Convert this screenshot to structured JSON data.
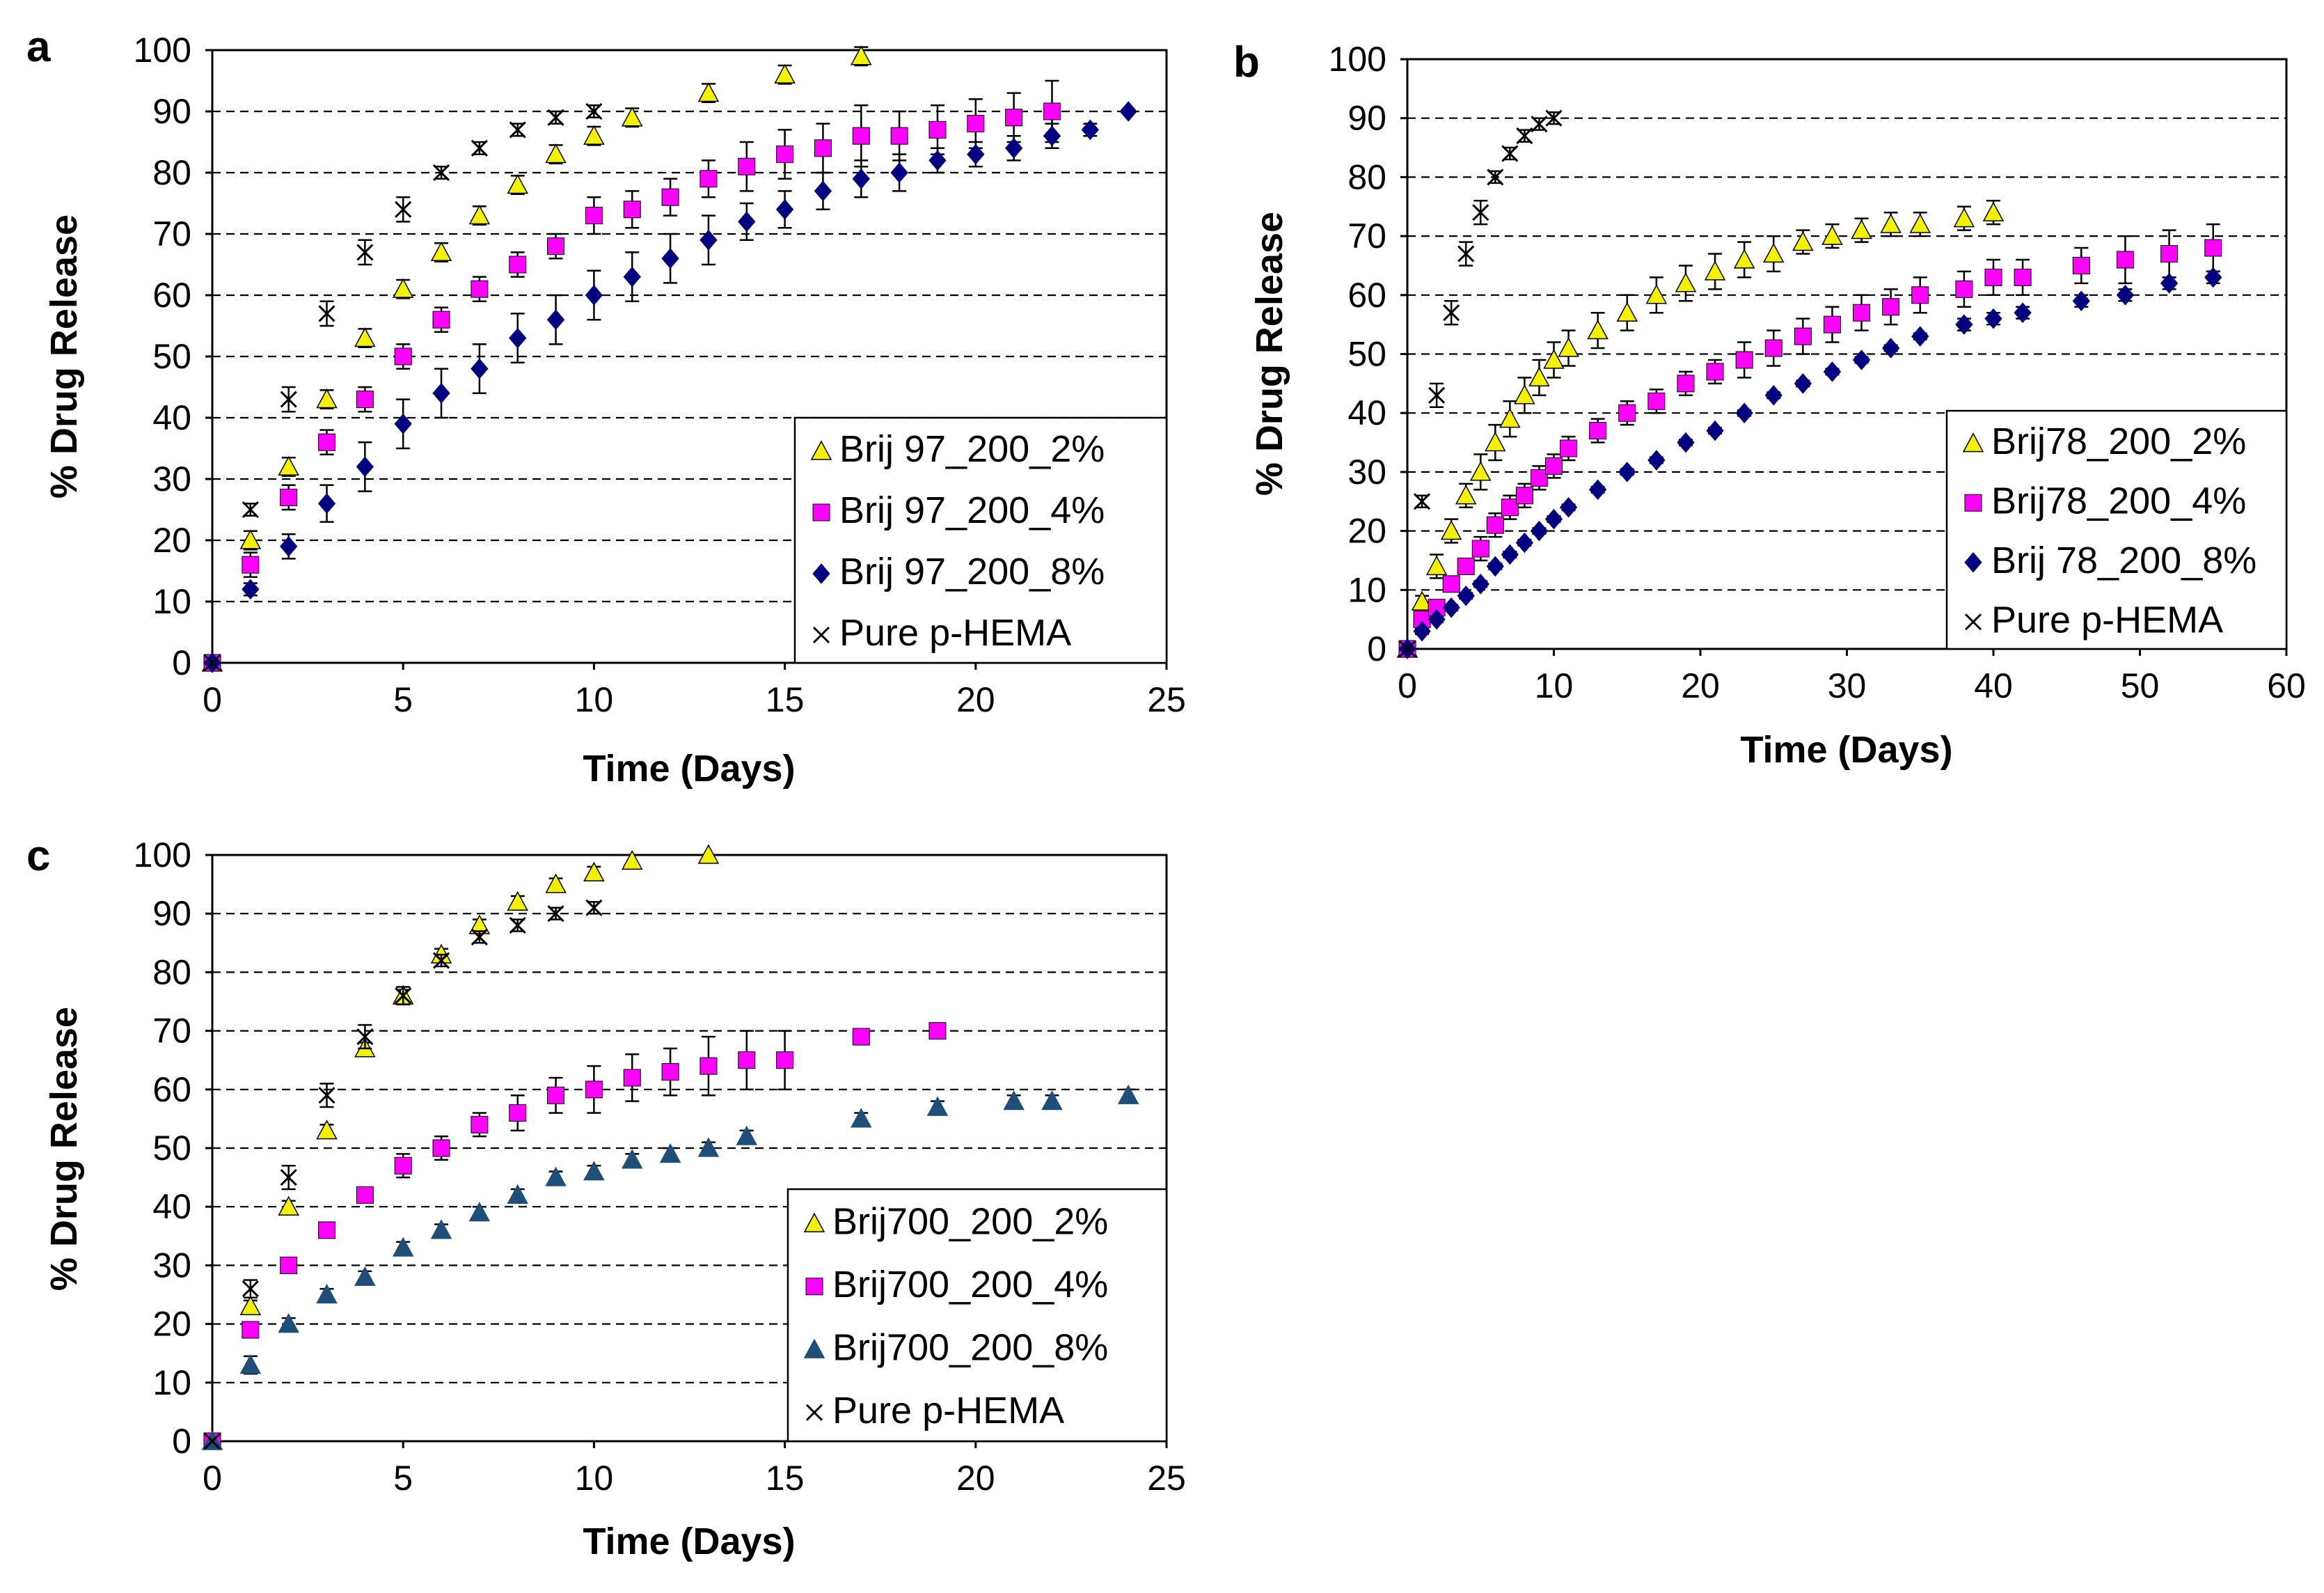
{
  "chart_data": [
    {
      "panel": "a",
      "type": "scatter",
      "xlabel": "Time (Days)",
      "ylabel": "% Drug Release",
      "xlim": [
        0,
        25
      ],
      "ylim": [
        0,
        100
      ],
      "xticks": [
        0,
        5,
        10,
        15,
        20,
        25
      ],
      "yticks": [
        0,
        10,
        20,
        30,
        40,
        50,
        60,
        70,
        80,
        90,
        100
      ],
      "legend_position": "bottom-right",
      "series": [
        {
          "name": "Brij 97_200_2%",
          "marker": "triangle",
          "color": "#f3f000",
          "x": [
            0,
            1,
            2,
            3,
            4,
            5,
            6,
            7,
            8,
            9,
            10,
            11,
            13,
            15,
            17
          ],
          "y": [
            0,
            20,
            32,
            43,
            53,
            61,
            67,
            73,
            78,
            83,
            86,
            89,
            93,
            96,
            99
          ],
          "err": [
            0,
            1.5,
            1.5,
            1.5,
            1.5,
            1.5,
            1.5,
            1.5,
            1.5,
            1.5,
            1.5,
            1.5,
            1.5,
            1.5,
            1.5
          ]
        },
        {
          "name": "Brij 97_200_4%",
          "marker": "square",
          "color": "#ff00ff",
          "x": [
            0,
            1,
            2,
            3,
            4,
            5,
            6,
            7,
            8,
            9,
            10,
            11,
            12,
            13,
            14,
            15,
            16,
            17,
            18,
            19,
            20,
            21,
            22
          ],
          "y": [
            0,
            16,
            27,
            36,
            43,
            50,
            56,
            61,
            65,
            68,
            73,
            74,
            76,
            79,
            81,
            83,
            84,
            86,
            86,
            87,
            88,
            89,
            90
          ],
          "err": [
            0,
            2,
            2,
            2,
            2,
            2,
            2,
            2,
            2,
            2,
            3,
            3,
            3,
            3,
            4,
            4,
            4,
            5,
            4,
            4,
            4,
            4,
            5
          ]
        },
        {
          "name": "Brij 97_200_8%",
          "marker": "diamond",
          "color": "#000080",
          "x": [
            0,
            1,
            2,
            3,
            4,
            5,
            6,
            7,
            8,
            9,
            10,
            11,
            12,
            13,
            14,
            15,
            16,
            17,
            18,
            19,
            20,
            21,
            22,
            23,
            24
          ],
          "y": [
            0,
            12,
            19,
            26,
            32,
            39,
            44,
            48,
            53,
            56,
            60,
            63,
            66,
            69,
            72,
            74,
            77,
            79,
            80,
            82,
            83,
            84,
            86,
            87,
            90
          ],
          "err": [
            0,
            1,
            2,
            3,
            4,
            4,
            4,
            4,
            4,
            4,
            4,
            4,
            4,
            4,
            3,
            3,
            3,
            3,
            3,
            2,
            2,
            2,
            2,
            1,
            0
          ]
        },
        {
          "name": "Pure p-HEMA",
          "marker": "x",
          "color": "#000000",
          "x": [
            0,
            1,
            2,
            3,
            4,
            5,
            6,
            7,
            8,
            9,
            10
          ],
          "y": [
            0,
            25,
            43,
            57,
            67,
            74,
            80,
            84,
            87,
            89,
            90
          ],
          "err": [
            0,
            1,
            2,
            2,
            2,
            2,
            1,
            1,
            1,
            1,
            1
          ]
        }
      ]
    },
    {
      "panel": "b",
      "type": "scatter",
      "xlabel": "Time (Days)",
      "ylabel": "% Drug Release",
      "xlim": [
        0,
        60
      ],
      "ylim": [
        0,
        100
      ],
      "xticks": [
        0,
        10,
        20,
        30,
        40,
        50,
        60
      ],
      "yticks": [
        0,
        10,
        20,
        30,
        40,
        50,
        60,
        70,
        80,
        90,
        100
      ],
      "legend_position": "bottom-right",
      "series": [
        {
          "name": "Brij78_200_2%",
          "marker": "triangle",
          "color": "#f3f000",
          "x": [
            0,
            1,
            2,
            3,
            4,
            5,
            6,
            7,
            8,
            9,
            10,
            11,
            13,
            15,
            17,
            19,
            21,
            23,
            25,
            27,
            29,
            31,
            33,
            35,
            38,
            40
          ],
          "y": [
            0,
            8,
            14,
            20,
            26,
            30,
            35,
            39,
            43,
            46,
            49,
            51,
            54,
            57,
            60,
            62,
            64,
            66,
            67,
            69,
            70,
            71,
            72,
            72,
            73,
            74
          ],
          "err": [
            0,
            1,
            2,
            2,
            2,
            3,
            3,
            3,
            3,
            3,
            3,
            3,
            3,
            3,
            3,
            3,
            3,
            3,
            3,
            2,
            2,
            2,
            2,
            2,
            2,
            2
          ]
        },
        {
          "name": "Brij78_200_4%",
          "marker": "square",
          "color": "#ff00ff",
          "x": [
            0,
            1,
            2,
            3,
            4,
            5,
            6,
            7,
            8,
            9,
            10,
            11,
            13,
            15,
            17,
            19,
            21,
            23,
            25,
            27,
            29,
            31,
            33,
            35,
            38,
            40,
            42,
            46,
            49,
            52,
            55
          ],
          "y": [
            0,
            5,
            7,
            11,
            14,
            17,
            21,
            24,
            26,
            29,
            31,
            34,
            37,
            40,
            42,
            45,
            47,
            49,
            51,
            53,
            55,
            57,
            58,
            60,
            61,
            63,
            63,
            65,
            66,
            67,
            68
          ],
          "err": [
            0,
            1,
            1,
            1,
            1,
            2,
            2,
            2,
            2,
            2,
            2,
            2,
            2,
            2,
            2,
            2,
            2,
            3,
            3,
            3,
            3,
            3,
            3,
            3,
            3,
            3,
            3,
            3,
            4,
            4,
            4
          ]
        },
        {
          "name": "Brij 78_200_8%",
          "marker": "diamond",
          "color": "#000080",
          "x": [
            0,
            1,
            2,
            3,
            4,
            5,
            6,
            7,
            8,
            9,
            10,
            11,
            13,
            15,
            17,
            19,
            21,
            23,
            25,
            27,
            29,
            31,
            33,
            35,
            38,
            40,
            42,
            46,
            49,
            52,
            55
          ],
          "y": [
            0,
            3,
            5,
            7,
            9,
            11,
            14,
            16,
            18,
            20,
            22,
            24,
            27,
            30,
            32,
            35,
            37,
            40,
            43,
            45,
            47,
            49,
            51,
            53,
            55,
            56,
            57,
            59,
            60,
            62,
            63
          ],
          "err": [
            0,
            0.5,
            0.5,
            0.5,
            0.5,
            0.5,
            0.5,
            0.5,
            0.5,
            0.5,
            0.5,
            0.5,
            0.5,
            0.5,
            0.5,
            0.5,
            0.5,
            0.5,
            0.5,
            0.5,
            0.5,
            0.5,
            0.5,
            0.5,
            1,
            1,
            1,
            1,
            1,
            1,
            1
          ]
        },
        {
          "name": "Pure p-HEMA",
          "marker": "x",
          "color": "#000000",
          "x": [
            0,
            1,
            2,
            3,
            4,
            5,
            6,
            7,
            8,
            9,
            10
          ],
          "y": [
            0,
            25,
            43,
            57,
            67,
            74,
            80,
            84,
            87,
            89,
            90
          ],
          "err": [
            0,
            1,
            2,
            2,
            2,
            2,
            1,
            1,
            1,
            1,
            1
          ]
        }
      ]
    },
    {
      "panel": "c",
      "type": "scatter",
      "xlabel": "Time (Days)",
      "ylabel": "% Drug Release",
      "xlim": [
        0,
        25
      ],
      "ylim": [
        0,
        100
      ],
      "xticks": [
        0,
        5,
        10,
        15,
        20,
        25
      ],
      "yticks": [
        0,
        10,
        20,
        30,
        40,
        50,
        60,
        70,
        80,
        90,
        100
      ],
      "legend_position": "bottom-right",
      "series": [
        {
          "name": "Brij700_200_2%",
          "marker": "triangle",
          "color": "#f3f000",
          "x": [
            0,
            1,
            2,
            3,
            4,
            5,
            6,
            7,
            8,
            9,
            10,
            11,
            13
          ],
          "y": [
            0,
            23,
            40,
            53,
            67,
            76,
            83,
            88,
            92,
            95,
            97,
            99,
            100
          ],
          "err": [
            0,
            1,
            1,
            1,
            1,
            1,
            1,
            1,
            1,
            1,
            1,
            1,
            0
          ]
        },
        {
          "name": "Brij700_200_4%",
          "marker": "square",
          "color": "#ff00ff",
          "x": [
            0,
            1,
            2,
            3,
            4,
            5,
            6,
            7,
            8,
            9,
            10,
            11,
            12,
            13,
            14,
            15,
            17,
            19
          ],
          "y": [
            0,
            19,
            30,
            36,
            42,
            47,
            50,
            54,
            56,
            59,
            60,
            62,
            63,
            64,
            65,
            65,
            69,
            70
          ],
          "err": [
            0,
            1,
            1,
            1,
            1,
            2,
            2,
            2,
            3,
            3,
            4,
            4,
            4,
            5,
            5,
            5,
            1,
            1
          ]
        },
        {
          "name": "Brij700_200_8%",
          "marker": "triangle-filled",
          "color": "#1f4e79",
          "x": [
            0,
            1,
            2,
            3,
            4,
            5,
            6,
            7,
            8,
            9,
            10,
            11,
            12,
            13,
            14,
            17,
            19,
            21,
            22,
            24
          ],
          "y": [
            0,
            13,
            20,
            25,
            28,
            33,
            36,
            39,
            42,
            45,
            46,
            48,
            49,
            50,
            52,
            55,
            57,
            58,
            58,
            59
          ],
          "err": [
            0,
            1.5,
            1,
            1,
            1,
            1,
            1,
            1,
            1,
            1,
            1,
            1,
            1,
            1,
            1,
            1,
            1,
            1,
            1,
            1
          ]
        },
        {
          "name": "Pure p-HEMA",
          "marker": "x",
          "color": "#000000",
          "x": [
            0,
            1,
            2,
            3,
            4,
            5,
            6,
            7,
            8,
            9,
            10
          ],
          "y": [
            0,
            26,
            45,
            59,
            69,
            76,
            82,
            86,
            88,
            90,
            91
          ],
          "err": [
            0,
            1.5,
            2,
            2,
            2,
            1.5,
            1,
            1,
            1,
            1,
            1
          ]
        }
      ]
    }
  ]
}
